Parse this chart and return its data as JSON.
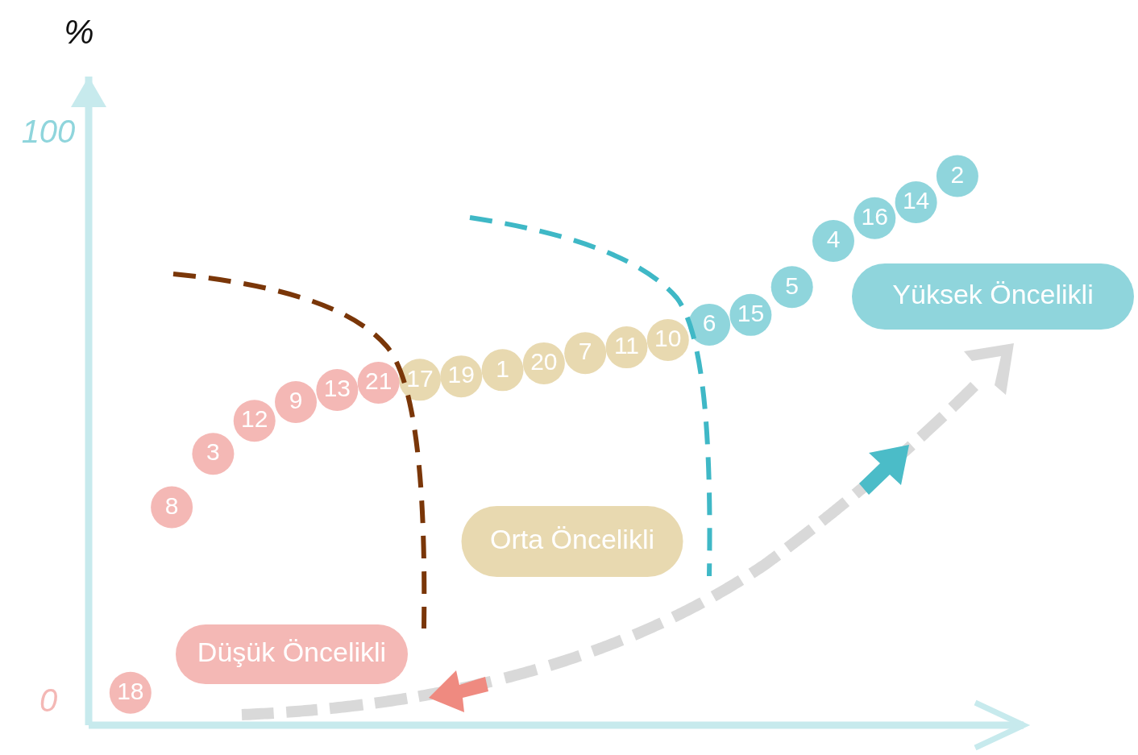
{
  "chart_data": {
    "type": "scatter",
    "ylabel": "%",
    "categories": [
      "18",
      "8",
      "3",
      "12",
      "9",
      "13",
      "21",
      "17",
      "19",
      "1",
      "20",
      "7",
      "11",
      "10",
      "6",
      "15",
      "5",
      "4",
      "16",
      "14",
      "2"
    ],
    "series": [
      {
        "name": "Düşük Öncelikli",
        "color": "#f4b8b5",
        "values": [
          1.7,
          34.3,
          43.7,
          49.5,
          52.8,
          54.9,
          56.2,
          null,
          null,
          null,
          null,
          null,
          null,
          null,
          null,
          null,
          null,
          null,
          null,
          null,
          null
        ]
      },
      {
        "name": "Orta Öncelikli",
        "color": "#e8d9b0",
        "values": [
          null,
          null,
          null,
          null,
          null,
          null,
          null,
          56.7,
          57.3,
          58.4,
          59.6,
          61.4,
          62.4,
          63.7,
          null,
          null,
          null,
          null,
          null,
          null,
          null
        ]
      },
      {
        "name": "Yüksek Öncelikli",
        "color": "#8fd5dc",
        "values": [
          null,
          null,
          null,
          null,
          null,
          null,
          null,
          null,
          null,
          null,
          null,
          null,
          null,
          null,
          66.4,
          68.1,
          73.0,
          81.1,
          85.1,
          87.9,
          92.5
        ]
      }
    ],
    "ylim": [
      -4,
      110
    ],
    "yticks": [
      0,
      100
    ],
    "tick_labels": "y",
    "marker": "circle",
    "legend": false,
    "grid": false
  }
}
